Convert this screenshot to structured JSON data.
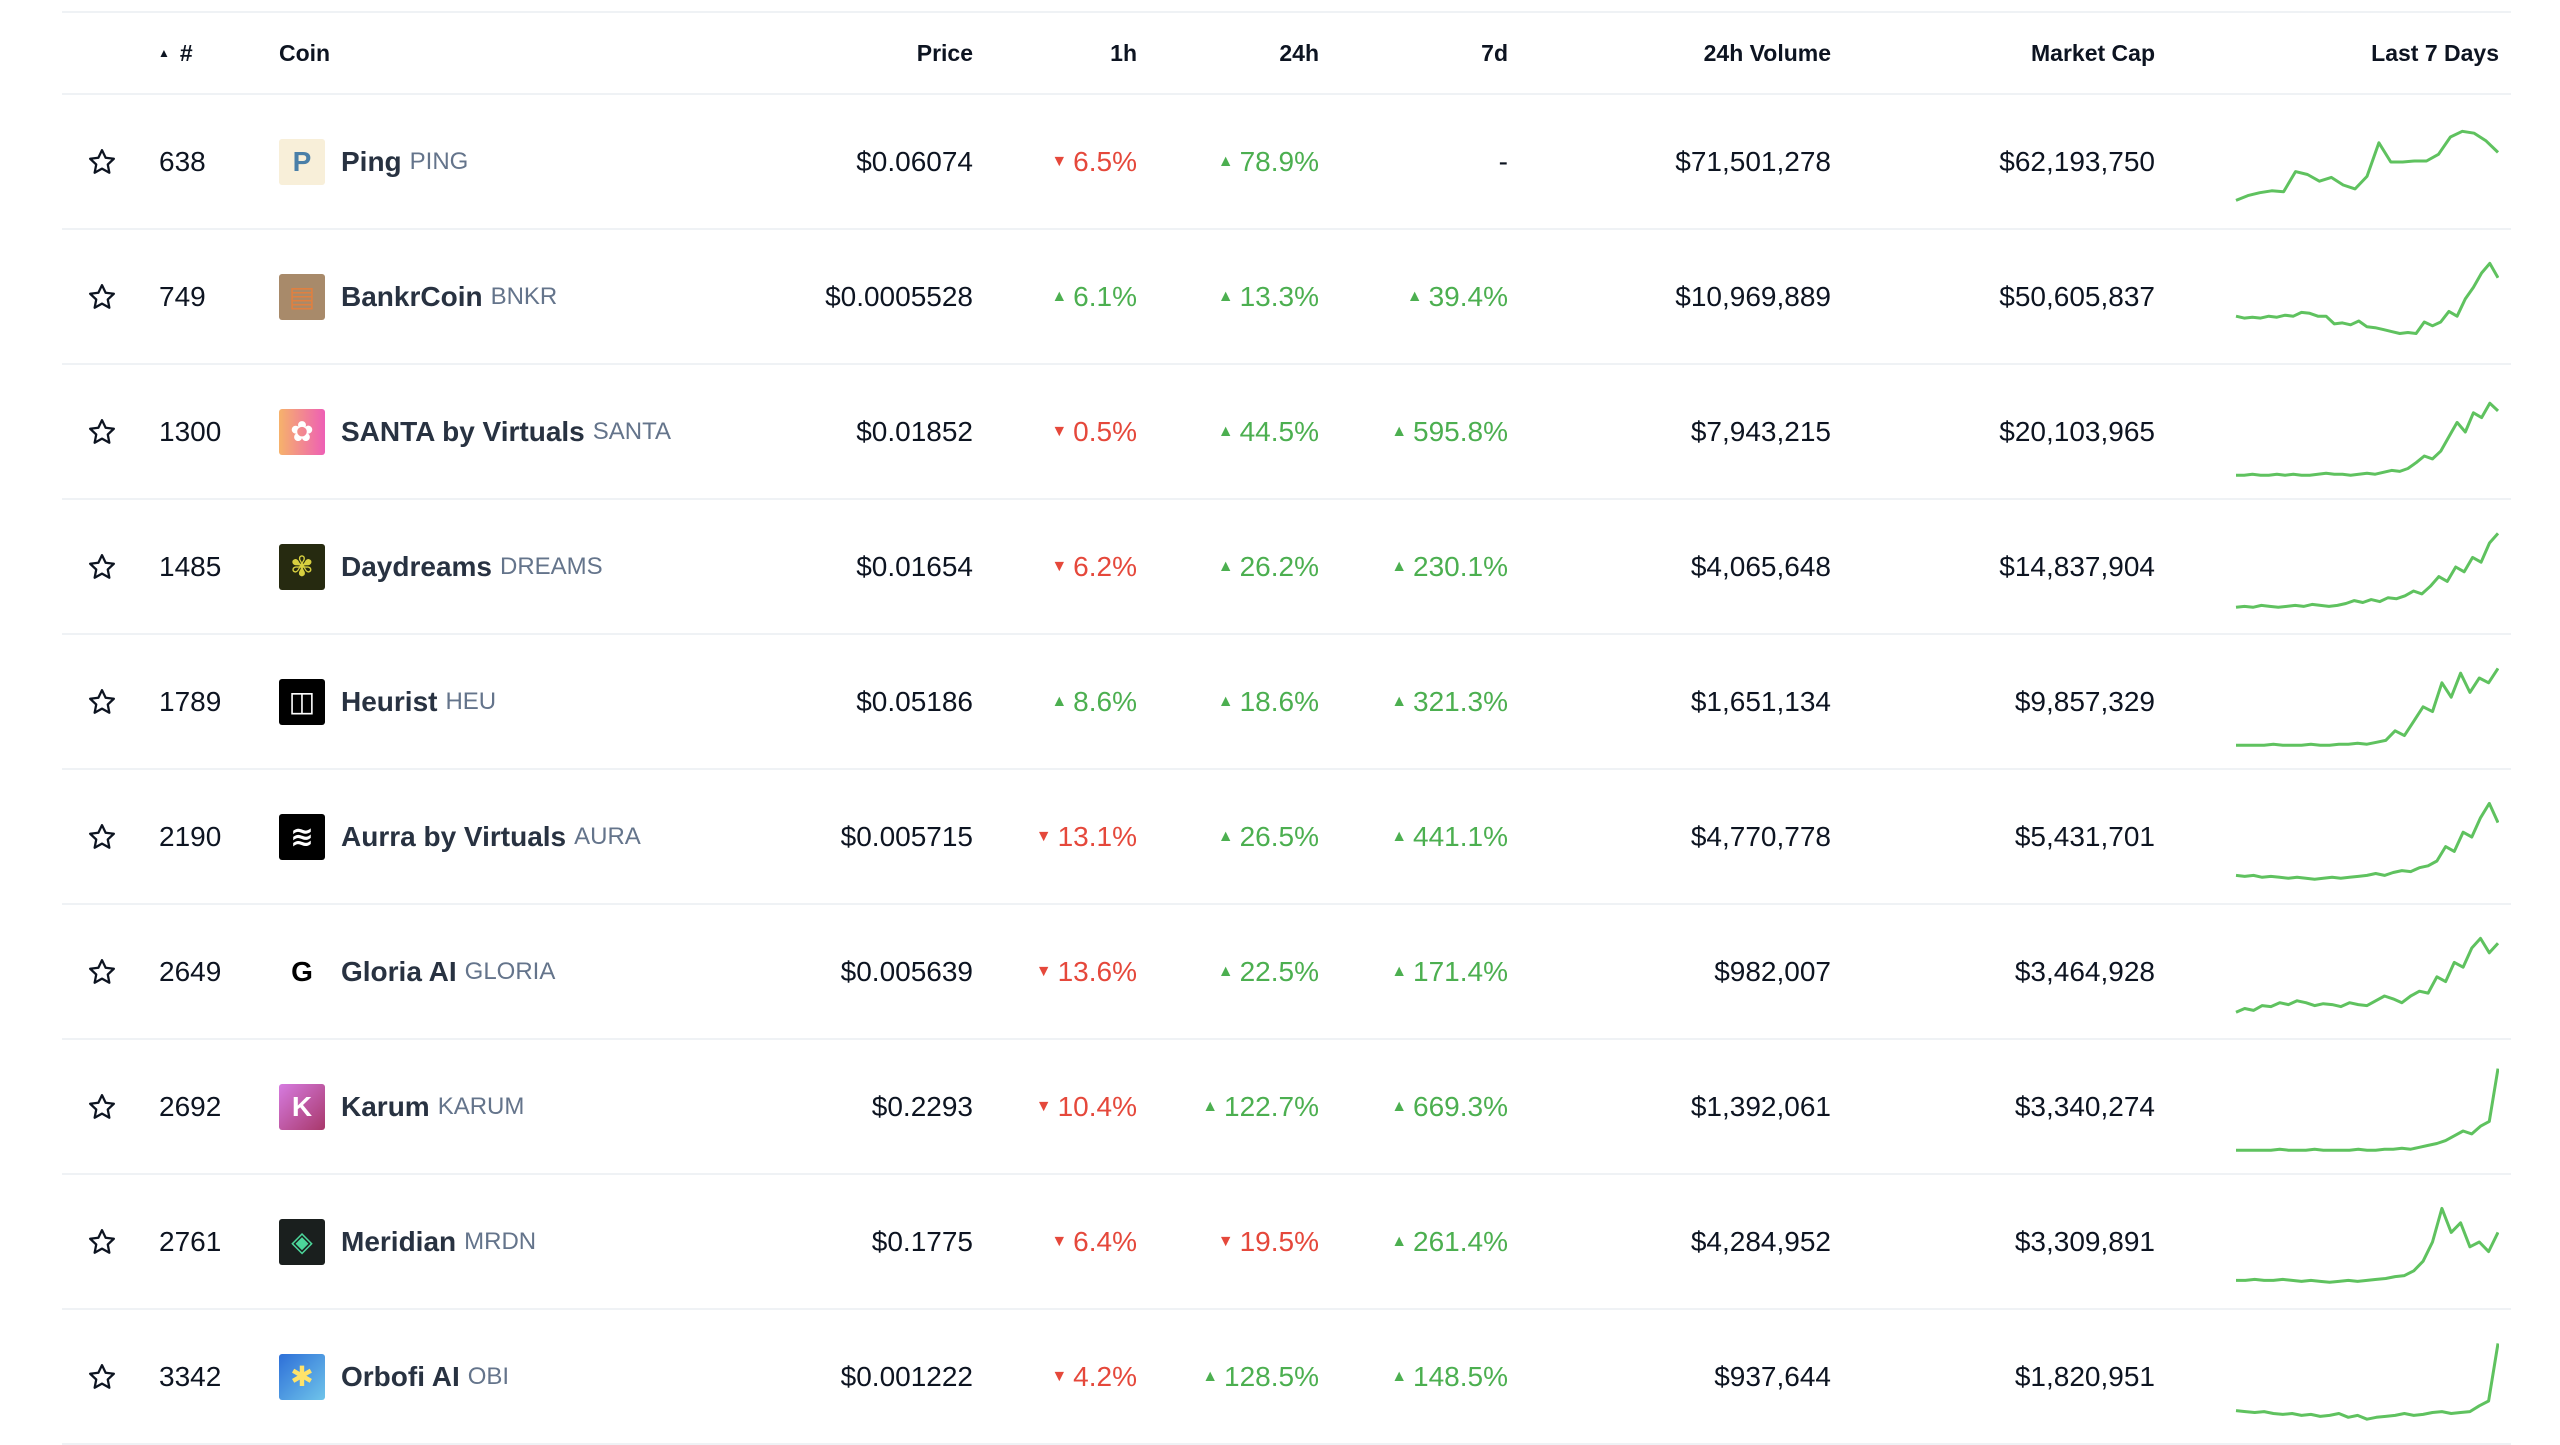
{
  "header": {
    "sort_indicator": "▲",
    "rank": "#",
    "coin": "Coin",
    "price": "Price",
    "h1": "1h",
    "h24": "24h",
    "d7": "7d",
    "volume": "24h Volume",
    "market_cap": "Market Cap",
    "last7": "Last 7 Days"
  },
  "colors": {
    "up": "#4caf50",
    "down": "#e5483b",
    "sparkline": "#5fc25f"
  },
  "rows": [
    {
      "rank": "638",
      "name": "Ping",
      "symbol": "PING",
      "icon": "ping-logo",
      "icon_bg": "#f8efd9",
      "icon_fg": "#4a7fa8",
      "icon_char": "P",
      "price": "$0.06074",
      "h1": "6.5%",
      "h1_dir": "down",
      "h24": "78.9%",
      "h24_dir": "up",
      "d7": "-",
      "d7_dir": "none",
      "volume": "$71,501,278",
      "market_cap": "$62,193,750",
      "spark": [
        10,
        15,
        18,
        20,
        19,
        40,
        37,
        30,
        34,
        26,
        22,
        35,
        70,
        50,
        50,
        51,
        51,
        58,
        76,
        82,
        80,
        72,
        60
      ]
    },
    {
      "rank": "749",
      "name": "BankrCoin",
      "symbol": "BNKR",
      "icon": "bankrcoin-logo",
      "icon_bg": "#a88a6a",
      "icon_fg": "#e08040",
      "icon_char": "▤",
      "price": "$0.0005528",
      "h1": "6.1%",
      "h1_dir": "up",
      "h24": "13.3%",
      "h24_dir": "up",
      "d7": "39.4%",
      "d7_dir": "up",
      "volume": "$10,969,889",
      "market_cap": "$50,605,837",
      "spark": [
        30,
        28,
        29,
        28,
        30,
        29,
        31,
        30,
        34,
        33,
        30,
        30,
        22,
        23,
        21,
        25,
        19,
        18,
        16,
        14,
        12,
        13,
        12,
        24,
        20,
        24,
        35,
        30,
        48,
        60,
        75,
        85,
        70
      ]
    },
    {
      "rank": "1300",
      "name": "SANTA by Virtuals",
      "symbol": "SANTA",
      "icon": "santa-logo",
      "icon_bg": "linear-gradient(90deg,#f6b26b,#ee5fb5)",
      "icon_fg": "#fff",
      "icon_char": "✿",
      "price": "$0.01852",
      "h1": "0.5%",
      "h1_dir": "down",
      "h24": "44.5%",
      "h24_dir": "up",
      "d7": "595.8%",
      "d7_dir": "up",
      "volume": "$7,943,215",
      "market_cap": "$20,103,965",
      "spark": [
        5,
        5,
        6,
        5,
        5,
        6,
        5,
        6,
        5,
        5,
        6,
        7,
        6,
        6,
        5,
        6,
        7,
        6,
        8,
        10,
        9,
        12,
        18,
        25,
        22,
        30,
        45,
        60,
        50,
        70,
        65,
        80,
        72
      ]
    },
    {
      "rank": "1485",
      "name": "Daydreams",
      "symbol": "DREAMS",
      "icon": "daydreams-logo",
      "icon_bg": "#262a10",
      "icon_fg": "#d8d040",
      "icon_char": "✾",
      "price": "$0.01654",
      "h1": "6.2%",
      "h1_dir": "down",
      "h24": "26.2%",
      "h24_dir": "up",
      "d7": "230.1%",
      "d7_dir": "up",
      "volume": "$4,065,648",
      "market_cap": "$14,837,904",
      "spark": [
        8,
        9,
        8,
        10,
        9,
        8,
        9,
        10,
        9,
        11,
        10,
        9,
        10,
        12,
        15,
        13,
        16,
        14,
        18,
        17,
        20,
        25,
        22,
        30,
        40,
        35,
        50,
        45,
        60,
        55,
        75,
        85
      ]
    },
    {
      "rank": "1789",
      "name": "Heurist",
      "symbol": "HEU",
      "icon": "heurist-logo",
      "icon_bg": "#000000",
      "icon_fg": "#fff",
      "icon_char": "◫",
      "price": "$0.05186",
      "h1": "8.6%",
      "h1_dir": "up",
      "h24": "18.6%",
      "h24_dir": "up",
      "d7": "321.3%",
      "d7_dir": "up",
      "volume": "$1,651,134",
      "market_cap": "$9,857,329",
      "spark": [
        5,
        5,
        5,
        5,
        6,
        5,
        5,
        5,
        6,
        5,
        5,
        6,
        6,
        7,
        6,
        8,
        10,
        20,
        15,
        30,
        45,
        40,
        70,
        55,
        80,
        60,
        75,
        70,
        85
      ]
    },
    {
      "rank": "2190",
      "name": "Aurra by Virtuals",
      "symbol": "AURA",
      "icon": "aurra-logo",
      "icon_bg": "#000000",
      "icon_fg": "#fff",
      "icon_char": "≋",
      "price": "$0.005715",
      "h1": "13.1%",
      "h1_dir": "down",
      "h24": "26.5%",
      "h24_dir": "up",
      "d7": "441.1%",
      "d7_dir": "up",
      "volume": "$4,770,778",
      "market_cap": "$5,431,701",
      "spark": [
        10,
        9,
        10,
        8,
        9,
        8,
        7,
        8,
        7,
        6,
        7,
        8,
        7,
        8,
        9,
        10,
        12,
        10,
        13,
        15,
        14,
        18,
        20,
        25,
        40,
        35,
        55,
        50,
        70,
        85,
        65
      ]
    },
    {
      "rank": "2649",
      "name": "Gloria AI",
      "symbol": "GLORIA",
      "icon": "gloria-logo",
      "icon_bg": "#ffffff",
      "icon_fg": "#000",
      "icon_char": "G",
      "price": "$0.005639",
      "h1": "13.6%",
      "h1_dir": "down",
      "h24": "22.5%",
      "h24_dir": "up",
      "d7": "171.4%",
      "d7_dir": "up",
      "volume": "$982,007",
      "market_cap": "$3,464,928",
      "spark": [
        8,
        12,
        10,
        15,
        14,
        18,
        16,
        20,
        18,
        15,
        17,
        16,
        14,
        18,
        16,
        15,
        20,
        25,
        22,
        18,
        25,
        30,
        28,
        45,
        40,
        60,
        55,
        75,
        85,
        70,
        80
      ]
    },
    {
      "rank": "2692",
      "name": "Karum",
      "symbol": "KARUM",
      "icon": "karum-logo",
      "icon_bg": "linear-gradient(135deg,#d67be0,#a8386a)",
      "icon_fg": "#fff",
      "icon_char": "K",
      "price": "$0.2293",
      "h1": "10.4%",
      "h1_dir": "down",
      "h24": "122.7%",
      "h24_dir": "up",
      "d7": "669.3%",
      "d7_dir": "up",
      "volume": "$1,392,061",
      "market_cap": "$3,340,274",
      "spark": [
        5,
        5,
        5,
        5,
        5,
        6,
        5,
        5,
        5,
        6,
        5,
        5,
        5,
        5,
        6,
        5,
        5,
        6,
        6,
        7,
        6,
        8,
        10,
        12,
        15,
        20,
        25,
        22,
        30,
        35,
        90
      ]
    },
    {
      "rank": "2761",
      "name": "Meridian",
      "symbol": "MRDN",
      "icon": "meridian-logo",
      "icon_bg": "#1a1f1e",
      "icon_fg": "#4cd69a",
      "icon_char": "◈",
      "price": "$0.1775",
      "h1": "6.4%",
      "h1_dir": "down",
      "h24": "19.5%",
      "h24_dir": "down",
      "d7": "261.4%",
      "d7_dir": "up",
      "volume": "$4,284,952",
      "market_cap": "$3,309,891",
      "spark": [
        10,
        10,
        11,
        10,
        10,
        11,
        10,
        9,
        10,
        9,
        8,
        9,
        10,
        9,
        10,
        11,
        12,
        14,
        15,
        20,
        30,
        50,
        85,
        60,
        70,
        45,
        50,
        40,
        60
      ]
    },
    {
      "rank": "3342",
      "name": "Orbofi AI",
      "symbol": "OBI",
      "icon": "orbofi-logo",
      "icon_bg": "linear-gradient(135deg,#2d6fd8,#6fc4ea)",
      "icon_fg": "#ffe36a",
      "icon_char": "✱",
      "price": "$0.001222",
      "h1": "4.2%",
      "h1_dir": "down",
      "h24": "128.5%",
      "h24_dir": "up",
      "d7": "148.5%",
      "d7_dir": "up",
      "volume": "$937,644",
      "market_cap": "$1,820,951",
      "spark": [
        15,
        14,
        13,
        14,
        12,
        11,
        12,
        10,
        11,
        9,
        10,
        12,
        8,
        10,
        6,
        8,
        9,
        10,
        12,
        10,
        11,
        13,
        14,
        12,
        13,
        14,
        20,
        25,
        85
      ]
    }
  ]
}
